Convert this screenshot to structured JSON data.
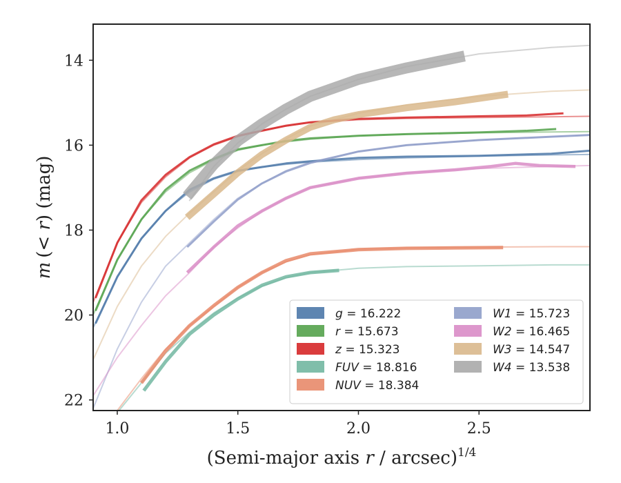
{
  "chart_data": {
    "type": "line",
    "xlabel_main": "(Semi-major axis ",
    "xlabel_var": "r",
    "xlabel_rest": " / arcsec)",
    "xlabel_sup": "1/4",
    "ylabel_main": "m",
    "ylabel_rest": "(< ",
    "ylabel_var": "r",
    "ylabel_unit": ") (mag)",
    "xlim": [
      0.9,
      2.96
    ],
    "ylim": [
      22.25,
      13.15
    ],
    "y_inverted": true,
    "x_ticks": [
      {
        "v": 1.0,
        "label": "1.0"
      },
      {
        "v": 1.5,
        "label": "1.5"
      },
      {
        "v": 2.0,
        "label": "2.0"
      },
      {
        "v": 2.5,
        "label": "2.5"
      }
    ],
    "y_ticks": [
      {
        "v": 14,
        "label": "14"
      },
      {
        "v": 16,
        "label": "16"
      },
      {
        "v": 18,
        "label": "18"
      },
      {
        "v": 20,
        "label": "20"
      },
      {
        "v": 22,
        "label": "22"
      }
    ],
    "legend_position": "lower-right",
    "series": [
      {
        "key": "g",
        "name": "g",
        "value": "16.222",
        "color": "#4c78a8",
        "model": [
          [
            0.9,
            20.3
          ],
          [
            1.0,
            19.1
          ],
          [
            1.1,
            18.2
          ],
          [
            1.2,
            17.55
          ],
          [
            1.3,
            17.1
          ],
          [
            1.4,
            16.8
          ],
          [
            1.5,
            16.62
          ],
          [
            1.6,
            16.52
          ],
          [
            1.7,
            16.45
          ],
          [
            1.8,
            16.4
          ],
          [
            2.0,
            16.34
          ],
          [
            2.2,
            16.3
          ],
          [
            2.5,
            16.26
          ],
          [
            2.8,
            16.23
          ],
          [
            2.96,
            16.22
          ]
        ],
        "data": [
          [
            0.91,
            20.2
          ],
          [
            1.0,
            19.1
          ],
          [
            1.1,
            18.2
          ],
          [
            1.2,
            17.55
          ],
          [
            1.3,
            17.05
          ],
          [
            1.4,
            16.78
          ],
          [
            1.5,
            16.6
          ],
          [
            1.7,
            16.43
          ],
          [
            1.8,
            16.38
          ],
          [
            2.0,
            16.3
          ],
          [
            2.2,
            16.27
          ],
          [
            2.5,
            16.25
          ],
          [
            2.8,
            16.2
          ],
          [
            2.96,
            16.13
          ]
        ],
        "data_width": 3.0
      },
      {
        "key": "r",
        "name": "r",
        "value": "15.673",
        "color": "#54a24b",
        "model": [
          [
            0.9,
            20.0
          ],
          [
            1.0,
            18.7
          ],
          [
            1.1,
            17.75
          ],
          [
            1.2,
            17.1
          ],
          [
            1.3,
            16.65
          ],
          [
            1.4,
            16.35
          ],
          [
            1.5,
            16.12
          ],
          [
            1.6,
            16.0
          ],
          [
            1.7,
            15.92
          ],
          [
            1.8,
            15.86
          ],
          [
            2.0,
            15.78
          ],
          [
            2.2,
            15.74
          ],
          [
            2.5,
            15.71
          ],
          [
            2.8,
            15.69
          ],
          [
            2.96,
            15.68
          ]
        ],
        "data": [
          [
            0.91,
            19.9
          ],
          [
            1.0,
            18.7
          ],
          [
            1.1,
            17.75
          ],
          [
            1.2,
            17.05
          ],
          [
            1.3,
            16.6
          ],
          [
            1.4,
            16.32
          ],
          [
            1.5,
            16.1
          ],
          [
            1.7,
            15.9
          ],
          [
            1.8,
            15.84
          ],
          [
            2.0,
            15.78
          ],
          [
            2.2,
            15.74
          ],
          [
            2.5,
            15.7
          ],
          [
            2.7,
            15.66
          ],
          [
            2.82,
            15.62
          ]
        ],
        "data_width": 3.0
      },
      {
        "key": "z",
        "name": "z",
        "value": "15.323",
        "color": "#d62728",
        "model": [
          [
            0.9,
            19.7
          ],
          [
            1.0,
            18.3
          ],
          [
            1.1,
            17.35
          ],
          [
            1.2,
            16.75
          ],
          [
            1.3,
            16.3
          ],
          [
            1.4,
            16.0
          ],
          [
            1.5,
            15.8
          ],
          [
            1.6,
            15.65
          ],
          [
            1.7,
            15.55
          ],
          [
            1.8,
            15.47
          ],
          [
            2.0,
            15.4
          ],
          [
            2.2,
            15.37
          ],
          [
            2.5,
            15.35
          ],
          [
            2.8,
            15.33
          ],
          [
            2.96,
            15.32
          ]
        ],
        "data": [
          [
            0.91,
            19.6
          ],
          [
            1.0,
            18.3
          ],
          [
            1.1,
            17.3
          ],
          [
            1.2,
            16.7
          ],
          [
            1.3,
            16.28
          ],
          [
            1.4,
            15.98
          ],
          [
            1.5,
            15.78
          ],
          [
            1.7,
            15.54
          ],
          [
            1.8,
            15.46
          ],
          [
            2.0,
            15.38
          ],
          [
            2.2,
            15.35
          ],
          [
            2.5,
            15.32
          ],
          [
            2.7,
            15.3
          ],
          [
            2.85,
            15.25
          ]
        ],
        "data_width": 3.0
      },
      {
        "key": "FUV",
        "name": "FUV",
        "value": "18.816",
        "color": "#72b7a1",
        "model": [
          [
            1.0,
            22.3
          ],
          [
            1.1,
            21.6
          ],
          [
            1.2,
            20.9
          ],
          [
            1.3,
            20.4
          ],
          [
            1.4,
            19.95
          ],
          [
            1.5,
            19.6
          ],
          [
            1.6,
            19.32
          ],
          [
            1.7,
            19.12
          ],
          [
            1.8,
            19.0
          ],
          [
            2.0,
            18.9
          ],
          [
            2.2,
            18.86
          ],
          [
            2.5,
            18.84
          ],
          [
            2.8,
            18.82
          ],
          [
            2.96,
            18.82
          ]
        ],
        "data": [
          [
            1.11,
            21.78
          ],
          [
            1.2,
            21.1
          ],
          [
            1.3,
            20.45
          ],
          [
            1.4,
            20.0
          ],
          [
            1.5,
            19.62
          ],
          [
            1.6,
            19.3
          ],
          [
            1.7,
            19.1
          ],
          [
            1.8,
            19.0
          ],
          [
            1.92,
            18.95
          ]
        ],
        "data_width": 5.0
      },
      {
        "key": "NUV",
        "name": "NUV",
        "value": "18.384",
        "color": "#e8896a",
        "model": [
          [
            1.0,
            22.25
          ],
          [
            1.1,
            21.5
          ],
          [
            1.2,
            20.8
          ],
          [
            1.3,
            20.25
          ],
          [
            1.4,
            19.8
          ],
          [
            1.5,
            19.35
          ],
          [
            1.6,
            19.0
          ],
          [
            1.7,
            18.75
          ],
          [
            1.8,
            18.58
          ],
          [
            2.0,
            18.45
          ],
          [
            2.2,
            18.42
          ],
          [
            2.5,
            18.4
          ],
          [
            2.8,
            18.39
          ],
          [
            2.96,
            18.39
          ]
        ],
        "data": [
          [
            1.1,
            21.6
          ],
          [
            1.2,
            20.85
          ],
          [
            1.3,
            20.25
          ],
          [
            1.4,
            19.78
          ],
          [
            1.5,
            19.35
          ],
          [
            1.6,
            19.0
          ],
          [
            1.7,
            18.72
          ],
          [
            1.8,
            18.56
          ],
          [
            2.0,
            18.46
          ],
          [
            2.2,
            18.43
          ],
          [
            2.4,
            18.42
          ],
          [
            2.6,
            18.41
          ]
        ],
        "data_width": 5.0
      },
      {
        "key": "W1",
        "name": "W1",
        "value": "15.723",
        "color": "#8f9ec9",
        "model": [
          [
            0.9,
            22.2
          ],
          [
            1.0,
            20.8
          ],
          [
            1.1,
            19.7
          ],
          [
            1.2,
            18.85
          ],
          [
            1.3,
            18.3
          ],
          [
            1.4,
            17.75
          ],
          [
            1.5,
            17.25
          ],
          [
            1.6,
            16.9
          ],
          [
            1.7,
            16.6
          ],
          [
            1.8,
            16.4
          ],
          [
            2.0,
            16.15
          ],
          [
            2.2,
            16.0
          ],
          [
            2.5,
            15.88
          ],
          [
            2.8,
            15.8
          ],
          [
            2.96,
            15.76
          ]
        ],
        "data": [
          [
            1.29,
            18.4
          ],
          [
            1.4,
            17.8
          ],
          [
            1.5,
            17.28
          ],
          [
            1.6,
            16.9
          ],
          [
            1.7,
            16.62
          ],
          [
            1.8,
            16.42
          ],
          [
            2.0,
            16.15
          ],
          [
            2.2,
            16.0
          ],
          [
            2.5,
            15.88
          ],
          [
            2.8,
            15.8
          ],
          [
            2.96,
            15.76
          ]
        ],
        "data_width": 3.0
      },
      {
        "key": "W2",
        "name": "W2",
        "value": "16.465",
        "color": "#d98cc6",
        "model": [
          [
            0.9,
            21.9
          ],
          [
            1.0,
            21.0
          ],
          [
            1.1,
            20.25
          ],
          [
            1.2,
            19.55
          ],
          [
            1.3,
            19.0
          ],
          [
            1.4,
            18.4
          ],
          [
            1.5,
            17.95
          ],
          [
            1.6,
            17.55
          ],
          [
            1.7,
            17.25
          ],
          [
            1.8,
            17.0
          ],
          [
            2.0,
            16.78
          ],
          [
            2.2,
            16.65
          ],
          [
            2.5,
            16.55
          ],
          [
            2.8,
            16.5
          ],
          [
            2.96,
            16.48
          ]
        ],
        "data": [
          [
            1.29,
            19.0
          ],
          [
            1.4,
            18.4
          ],
          [
            1.5,
            17.9
          ],
          [
            1.6,
            17.55
          ],
          [
            1.7,
            17.25
          ],
          [
            1.8,
            17.0
          ],
          [
            2.0,
            16.78
          ],
          [
            2.2,
            16.66
          ],
          [
            2.4,
            16.58
          ],
          [
            2.55,
            16.5
          ],
          [
            2.65,
            16.43
          ],
          [
            2.75,
            16.48
          ],
          [
            2.9,
            16.5
          ]
        ],
        "data_width": 4.5
      },
      {
        "key": "W3",
        "name": "W3",
        "value": "14.547",
        "color": "#d9b88c",
        "model": [
          [
            0.9,
            21.05
          ],
          [
            1.0,
            19.8
          ],
          [
            1.1,
            18.85
          ],
          [
            1.2,
            18.15
          ],
          [
            1.3,
            17.6
          ],
          [
            1.4,
            17.1
          ],
          [
            1.5,
            16.6
          ],
          [
            1.6,
            16.2
          ],
          [
            1.7,
            15.85
          ],
          [
            1.8,
            15.55
          ],
          [
            2.0,
            15.25
          ],
          [
            2.2,
            15.05
          ],
          [
            2.5,
            14.85
          ],
          [
            2.8,
            14.73
          ],
          [
            2.96,
            14.7
          ]
        ],
        "data": [
          [
            1.29,
            17.7
          ],
          [
            1.4,
            17.15
          ],
          [
            1.5,
            16.65
          ],
          [
            1.6,
            16.22
          ],
          [
            1.7,
            15.88
          ],
          [
            1.8,
            15.58
          ],
          [
            1.9,
            15.4
          ],
          [
            2.0,
            15.28
          ],
          [
            2.2,
            15.12
          ],
          [
            2.4,
            14.98
          ],
          [
            2.62,
            14.8
          ]
        ],
        "data_width": 10
      },
      {
        "key": "W4",
        "name": "W4",
        "value": "13.538",
        "color": "#aaaaaa",
        "model": [
          [
            1.3,
            17.3
          ],
          [
            1.4,
            16.5
          ],
          [
            1.5,
            15.95
          ],
          [
            1.6,
            15.5
          ],
          [
            1.7,
            15.15
          ],
          [
            1.8,
            14.85
          ],
          [
            2.0,
            14.45
          ],
          [
            2.2,
            14.15
          ],
          [
            2.5,
            13.85
          ],
          [
            2.8,
            13.7
          ],
          [
            2.96,
            13.65
          ]
        ],
        "data": [
          [
            1.29,
            17.2
          ],
          [
            1.4,
            16.45
          ],
          [
            1.5,
            15.9
          ],
          [
            1.6,
            15.5
          ],
          [
            1.7,
            15.15
          ],
          [
            1.8,
            14.85
          ],
          [
            1.9,
            14.65
          ],
          [
            2.0,
            14.45
          ],
          [
            2.2,
            14.18
          ],
          [
            2.44,
            13.9
          ]
        ],
        "data_width": 16
      }
    ]
  }
}
